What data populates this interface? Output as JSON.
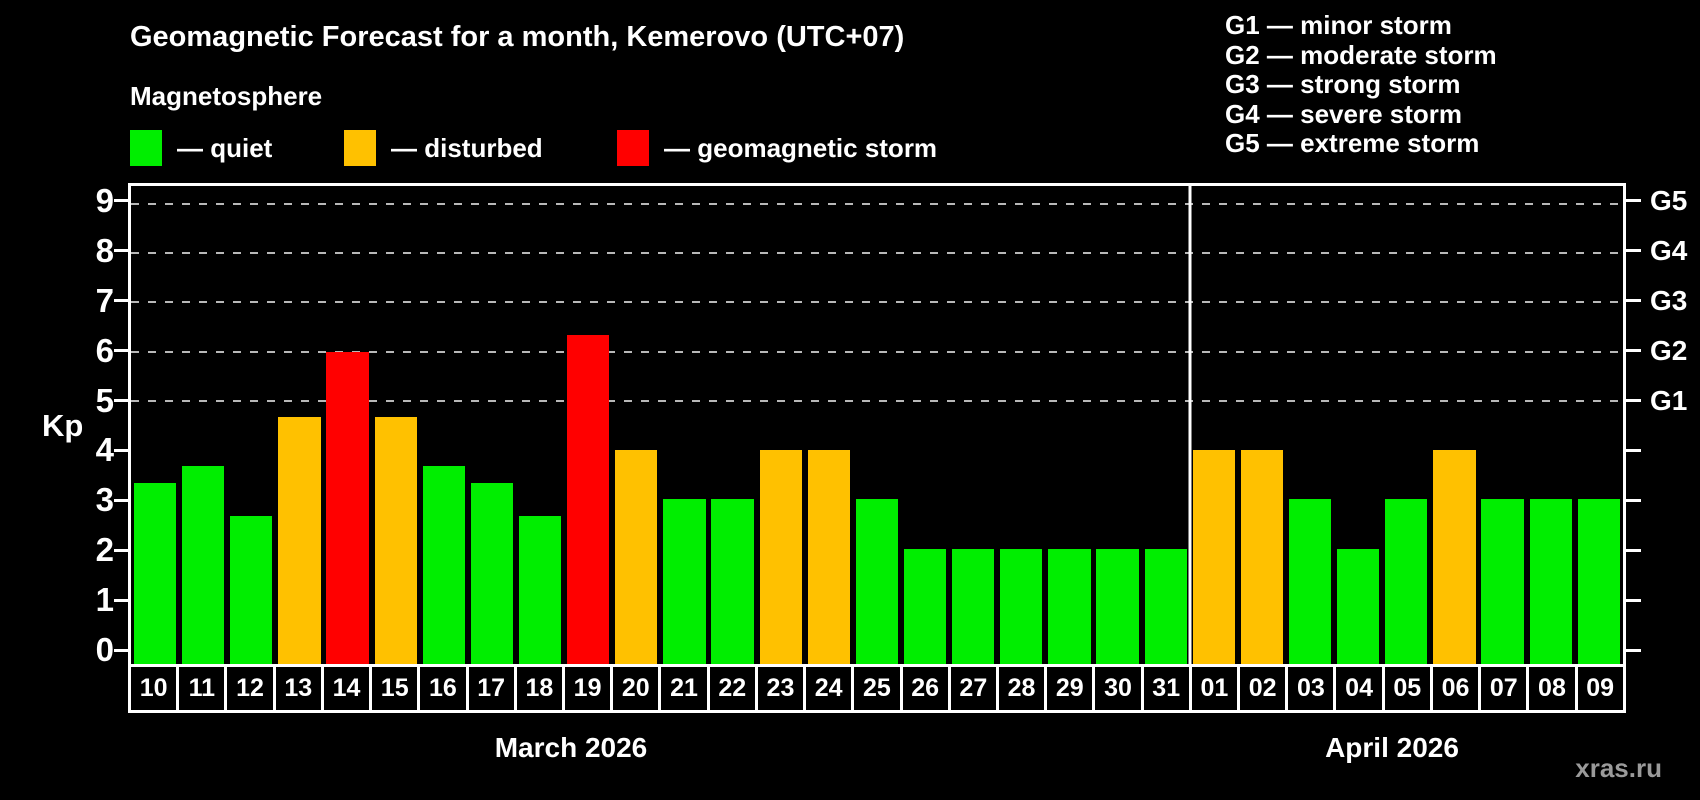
{
  "header": {
    "title": "Geomagnetic Forecast for a month, Kemerovo (UTC+07)",
    "subtitle": "Magnetosphere"
  },
  "legend": {
    "items": [
      {
        "label": "— quiet",
        "status": "quiet"
      },
      {
        "label": "— disturbed",
        "status": "disturbed"
      },
      {
        "label": "— geomagnetic storm",
        "status": "storm"
      }
    ]
  },
  "g_legend": {
    "lines": [
      "G1 — minor storm",
      "G2 — moderate storm",
      "G3 — strong storm",
      "G4 — severe storm",
      "G5 — extreme storm"
    ]
  },
  "watermark": "xras.ru",
  "chart_data": {
    "type": "bar",
    "title": "Geomagnetic Forecast for a month, Kemerovo (UTC+07)",
    "ylabel": "Kp",
    "ylim": [
      -0.34,
      9.36
    ],
    "y_ticks": [
      0,
      1,
      2,
      3,
      4,
      5,
      6,
      7,
      8,
      9
    ],
    "gridlines_at": [
      5,
      6,
      7,
      8,
      9
    ],
    "grid": true,
    "legend_position": "top",
    "right_axis": [
      {
        "kp": 5,
        "label": "G1"
      },
      {
        "kp": 6,
        "label": "G2"
      },
      {
        "kp": 7,
        "label": "G3"
      },
      {
        "kp": 8,
        "label": "G4"
      },
      {
        "kp": 9,
        "label": "G5"
      }
    ],
    "status_colors": {
      "quiet": "#00ee00",
      "disturbed": "#ffc100",
      "storm": "#ff0000"
    },
    "months": [
      {
        "label": "March 2026",
        "start_index": 0,
        "days": 22
      },
      {
        "label": "April 2026",
        "start_index": 22,
        "days": 9
      }
    ],
    "month_split_index": 22,
    "points": [
      {
        "day": "10",
        "kp": 3.33,
        "status": "quiet"
      },
      {
        "day": "11",
        "kp": 3.67,
        "status": "quiet"
      },
      {
        "day": "12",
        "kp": 2.67,
        "status": "quiet"
      },
      {
        "day": "13",
        "kp": 4.67,
        "status": "disturbed"
      },
      {
        "day": "14",
        "kp": 6.0,
        "status": "storm"
      },
      {
        "day": "15",
        "kp": 4.67,
        "status": "disturbed"
      },
      {
        "day": "16",
        "kp": 3.67,
        "status": "quiet"
      },
      {
        "day": "17",
        "kp": 3.33,
        "status": "quiet"
      },
      {
        "day": "18",
        "kp": 2.67,
        "status": "quiet"
      },
      {
        "day": "19",
        "kp": 6.33,
        "status": "storm"
      },
      {
        "day": "20",
        "kp": 4.0,
        "status": "disturbed"
      },
      {
        "day": "21",
        "kp": 3.0,
        "status": "quiet"
      },
      {
        "day": "22",
        "kp": 3.0,
        "status": "quiet"
      },
      {
        "day": "23",
        "kp": 4.0,
        "status": "disturbed"
      },
      {
        "day": "24",
        "kp": 4.0,
        "status": "disturbed"
      },
      {
        "day": "25",
        "kp": 3.0,
        "status": "quiet"
      },
      {
        "day": "26",
        "kp": 2.0,
        "status": "quiet"
      },
      {
        "day": "27",
        "kp": 2.0,
        "status": "quiet"
      },
      {
        "day": "28",
        "kp": 2.0,
        "status": "quiet"
      },
      {
        "day": "29",
        "kp": 2.0,
        "status": "quiet"
      },
      {
        "day": "30",
        "kp": 2.0,
        "status": "quiet"
      },
      {
        "day": "31",
        "kp": 2.0,
        "status": "quiet"
      },
      {
        "day": "01",
        "kp": 4.0,
        "status": "disturbed"
      },
      {
        "day": "02",
        "kp": 4.0,
        "status": "disturbed"
      },
      {
        "day": "03",
        "kp": 3.0,
        "status": "quiet"
      },
      {
        "day": "04",
        "kp": 2.0,
        "status": "quiet"
      },
      {
        "day": "05",
        "kp": 3.0,
        "status": "quiet"
      },
      {
        "day": "06",
        "kp": 4.0,
        "status": "disturbed"
      },
      {
        "day": "07",
        "kp": 3.0,
        "status": "quiet"
      },
      {
        "day": "08",
        "kp": 3.0,
        "status": "quiet"
      },
      {
        "day": "09",
        "kp": 3.0,
        "status": "quiet"
      }
    ]
  }
}
